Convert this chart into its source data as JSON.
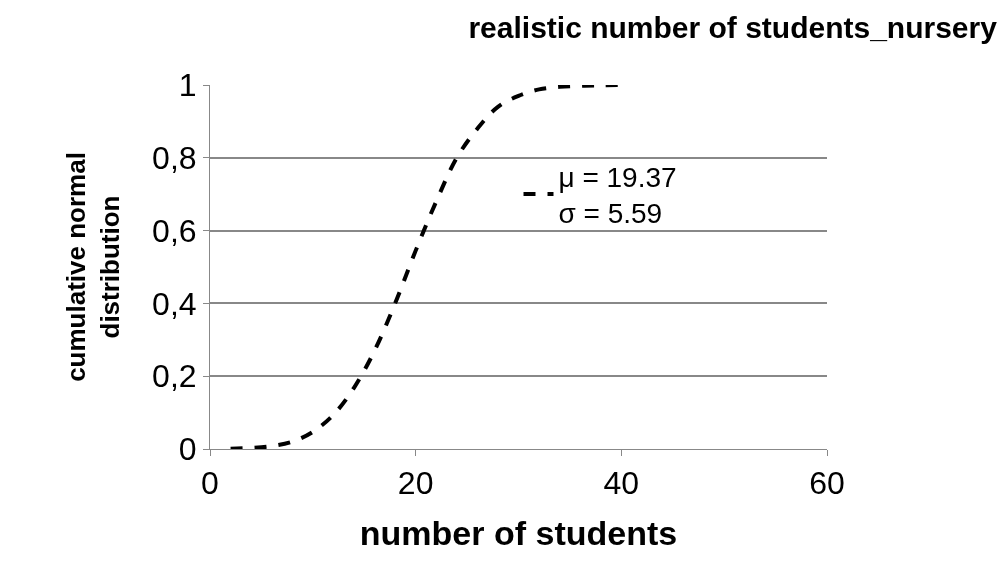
{
  "chart_data": {
    "type": "line",
    "title": "realistic number of students_nursery",
    "xlabel": "number of students",
    "ylabel": "cumulative normal\ndistribution",
    "x": [
      2,
      4,
      6,
      8,
      10,
      12,
      14,
      16,
      18,
      20,
      22,
      24,
      26,
      28,
      30,
      32,
      34,
      36,
      38,
      40
    ],
    "series": [
      {
        "name": "μ = 19.37\nσ = 5.59",
        "color": "#000000",
        "values": [
          0.001,
          0.003,
          0.008,
          0.02,
          0.047,
          0.094,
          0.168,
          0.27,
          0.4,
          0.545,
          0.68,
          0.8,
          0.88,
          0.94,
          0.97,
          0.988,
          0.995,
          0.998,
          0.999,
          1.0
        ]
      }
    ],
    "xlim": [
      0,
      60
    ],
    "xticks": [
      0,
      20,
      40,
      60
    ],
    "ylim": [
      0,
      1
    ],
    "yticks": [
      {
        "value": 0,
        "label": "0"
      },
      {
        "value": 0.2,
        "label": "0,2"
      },
      {
        "value": 0.4,
        "label": "0,4"
      },
      {
        "value": 0.6,
        "label": "0,6"
      },
      {
        "value": 0.8,
        "label": "0,8"
      },
      {
        "value": 1,
        "label": "1"
      }
    ],
    "grid": "y",
    "legend": "right",
    "marker": "none",
    "line_style": "dashed"
  }
}
